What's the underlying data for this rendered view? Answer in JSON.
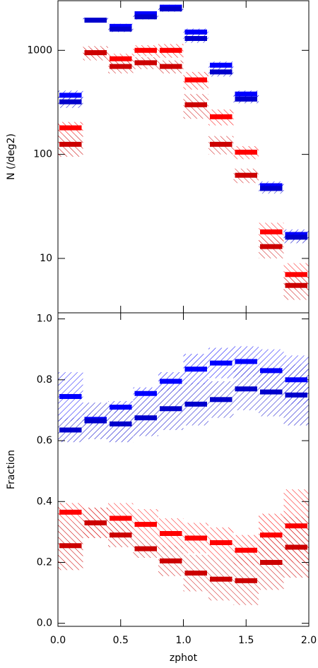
{
  "chart_data": [
    {
      "type": "histogram",
      "ylabel": "N (/deg2)",
      "log_y": true,
      "bins": [
        0.0,
        0.2,
        0.4,
        0.6,
        0.8,
        1.0,
        1.2,
        1.4,
        1.6,
        1.8,
        2.0
      ],
      "xlim": [
        0.0,
        2.0
      ],
      "ylim": [
        3,
        3000
      ],
      "yticks": [
        10,
        100,
        1000
      ],
      "series": [
        {
          "color": "#0000ff",
          "values": [
            370,
            1950,
            1700,
            2250,
            2600,
            1500,
            720,
            380,
            50,
            17
          ],
          "errors": [
            40,
            100,
            100,
            120,
            150,
            120,
            60,
            30,
            5,
            2
          ]
        },
        {
          "color": "#0000cc",
          "values": [
            320,
            1950,
            1600,
            2100,
            2500,
            1300,
            620,
            340,
            47,
            16
          ],
          "errors": [
            40,
            100,
            100,
            120,
            150,
            120,
            60,
            30,
            5,
            2
          ]
        },
        {
          "color": "#ff0000",
          "values": [
            180,
            950,
            830,
            1000,
            1000,
            520,
            230,
            105,
            18,
            7
          ],
          "errors": [
            25,
            100,
            100,
            120,
            150,
            100,
            40,
            15,
            4,
            2
          ]
        },
        {
          "color": "#cc0000",
          "values": [
            125,
            950,
            700,
            760,
            700,
            300,
            125,
            63,
            13,
            5.5
          ],
          "errors": [
            30,
            150,
            100,
            100,
            100,
            80,
            25,
            10,
            3,
            1.5
          ]
        }
      ]
    },
    {
      "type": "histogram",
      "ylabel": "Fraction",
      "xlabel": "zphot",
      "log_y": false,
      "bins": [
        0.0,
        0.2,
        0.4,
        0.6,
        0.8,
        1.0,
        1.2,
        1.4,
        1.6,
        1.8,
        2.0
      ],
      "xlim": [
        0.0,
        2.0
      ],
      "ylim": [
        -0.01,
        1.02
      ],
      "xticks": [
        {
          "value": 0,
          "label": "0.0"
        },
        {
          "value": 0.5,
          "label": "0.5"
        },
        {
          "value": 1,
          "label": "1.0"
        },
        {
          "value": 1.5,
          "label": "1.5"
        },
        {
          "value": 2,
          "label": "2.0"
        }
      ],
      "yticks": [
        {
          "value": 0,
          "label": "0.0"
        },
        {
          "value": 0.2,
          "label": "0.2"
        },
        {
          "value": 0.4,
          "label": "0.4"
        },
        {
          "value": 0.6,
          "label": "0.6"
        },
        {
          "value": 0.8,
          "label": "0.8"
        },
        {
          "value": 1,
          "label": "1.0"
        }
      ],
      "series": [
        {
          "color": "#0000ff",
          "values": [
            0.745,
            0.67,
            0.71,
            0.755,
            0.795,
            0.835,
            0.855,
            0.86,
            0.83,
            0.8
          ],
          "errors": [
            0.08,
            0.02,
            0.02,
            0.02,
            0.03,
            0.05,
            0.05,
            0.05,
            0.07,
            0.08
          ]
        },
        {
          "color": "#0000cc",
          "values": [
            0.635,
            0.665,
            0.655,
            0.675,
            0.705,
            0.72,
            0.735,
            0.77,
            0.76,
            0.75
          ],
          "errors": [
            0.04,
            0.06,
            0.06,
            0.06,
            0.07,
            0.07,
            0.06,
            0.07,
            0.08,
            0.1
          ]
        },
        {
          "color": "#ff0000",
          "values": [
            0.365,
            0.33,
            0.345,
            0.325,
            0.295,
            0.28,
            0.265,
            0.24,
            0.29,
            0.32
          ],
          "errors": [
            0.03,
            0.05,
            0.05,
            0.05,
            0.05,
            0.05,
            0.05,
            0.05,
            0.07,
            0.12
          ]
        },
        {
          "color": "#cc0000",
          "values": [
            0.255,
            0.33,
            0.29,
            0.245,
            0.205,
            0.165,
            0.145,
            0.14,
            0.2,
            0.25
          ],
          "errors": [
            0.08,
            0.05,
            0.04,
            0.03,
            0.05,
            0.06,
            0.07,
            0.08,
            0.09,
            0.1
          ]
        }
      ]
    }
  ]
}
